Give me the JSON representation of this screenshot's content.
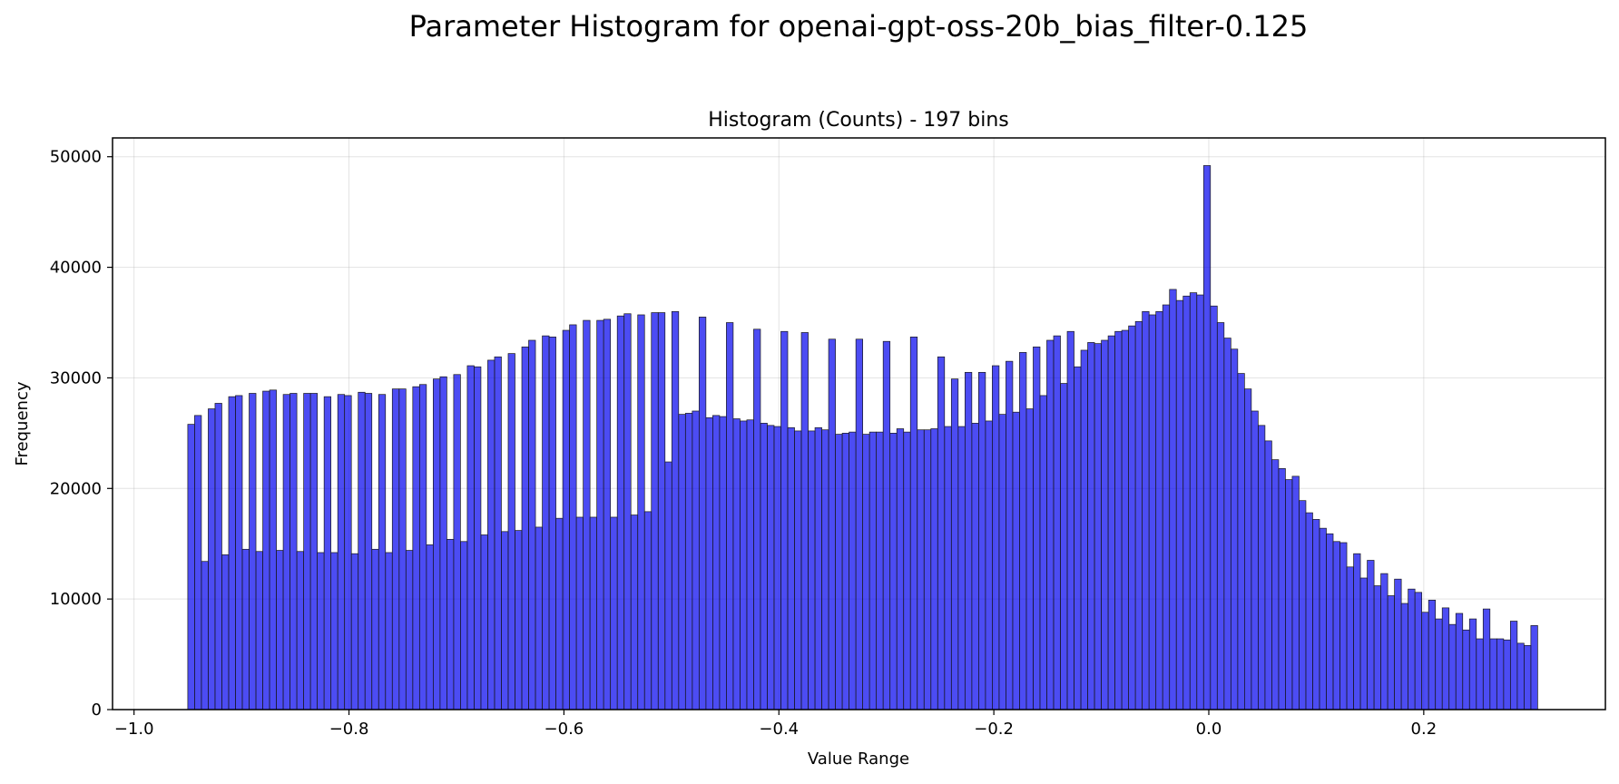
{
  "figure": {
    "suptitle": "Parameter Histogram for openai-gpt-oss-20b_bias_filter-0.125"
  },
  "chart_data": {
    "type": "bar",
    "title": "Histogram (Counts) - 197 bins",
    "xlabel": "Value Range",
    "ylabel": "Frequency",
    "bins": 197,
    "bin_start": -0.95,
    "bin_end": 0.306,
    "xlim": [
      -1.02,
      0.369
    ],
    "ylim": [
      0,
      51700
    ],
    "xticks": [
      -1.0,
      -0.8,
      -0.6,
      -0.4,
      -0.2,
      0.0,
      0.2
    ],
    "xtick_labels": [
      "−1.0",
      "−0.8",
      "−0.6",
      "−0.4",
      "−0.2",
      "0.0",
      "0.2"
    ],
    "yticks": [
      0,
      10000,
      20000,
      30000,
      40000,
      50000
    ],
    "ytick_labels": [
      "0",
      "10000",
      "20000",
      "30000",
      "40000",
      "50000"
    ],
    "grid": true,
    "bar_color": "#0000ee",
    "bar_opacity": 0.7,
    "edge_color": "#1a1a1a",
    "values": [
      25800,
      26600,
      13400,
      27200,
      27700,
      14000,
      28300,
      28400,
      14500,
      28600,
      14300,
      28800,
      28900,
      14400,
      28500,
      28600,
      14300,
      28600,
      28600,
      14200,
      28300,
      14200,
      28500,
      28400,
      14100,
      28700,
      28600,
      14500,
      28500,
      14200,
      29000,
      29000,
      14400,
      29200,
      29400,
      14900,
      29900,
      30100,
      15400,
      30300,
      15200,
      31100,
      31000,
      15800,
      31600,
      31900,
      16100,
      32200,
      16200,
      32800,
      33400,
      16500,
      33800,
      33700,
      17300,
      34300,
      34800,
      17400,
      35200,
      17400,
      35200,
      35300,
      17400,
      35600,
      35800,
      17600,
      35700,
      17900,
      35900,
      35900,
      22400,
      36000,
      26700,
      26800,
      27000,
      35500,
      26400,
      26600,
      26500,
      35000,
      26300,
      26100,
      26200,
      34400,
      25900,
      25700,
      25600,
      34200,
      25500,
      25200,
      34100,
      25200,
      25500,
      25300,
      33500,
      24900,
      25000,
      25100,
      33500,
      24900,
      25100,
      25100,
      33300,
      25000,
      25400,
      25100,
      33700,
      25300,
      25300,
      25400,
      31900,
      25600,
      29900,
      25600,
      30500,
      25900,
      30500,
      26100,
      31100,
      26700,
      31500,
      26900,
      32300,
      27200,
      32800,
      28400,
      33400,
      33800,
      29500,
      34200,
      31000,
      32500,
      33200,
      33100,
      33400,
      33800,
      34200,
      34300,
      34700,
      35100,
      36000,
      35700,
      36000,
      36600,
      38000,
      37000,
      37400,
      37700,
      37500,
      49200,
      36500,
      35000,
      33600,
      32600,
      30400,
      29000,
      27000,
      25700,
      24300,
      22600,
      21800,
      20800,
      21100,
      18900,
      17800,
      17200,
      16400,
      15900,
      15200,
      15100,
      12900,
      14100,
      11900,
      13500,
      11200,
      12300,
      10300,
      11800,
      9600,
      10900,
      10600,
      8800,
      9900,
      8200,
      9200,
      7700,
      8700,
      7200,
      8200,
      6400,
      9100,
      6400,
      6400,
      6300,
      8000,
      6000,
      5800,
      7600
    ]
  }
}
